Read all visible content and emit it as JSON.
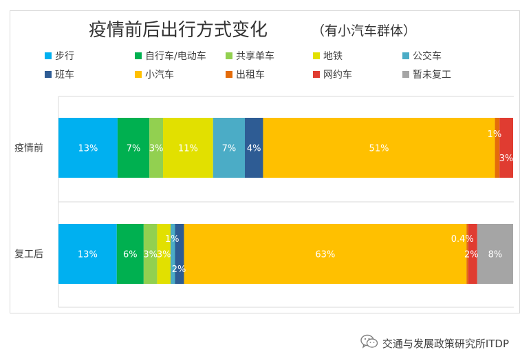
{
  "chart_data": {
    "type": "bar",
    "orientation": "horizontal",
    "stacked": "percent",
    "title": "疫情前后出行方式变化",
    "subtitle": "（有小汽车群体）",
    "legend_position": "top",
    "grid": false,
    "xlim": [
      0,
      100
    ],
    "categories": [
      "疫情前",
      "复工后"
    ],
    "series": [
      {
        "name": "步行",
        "color": "#00b0f0",
        "values": [
          13,
          13
        ],
        "labels": [
          "13%",
          "13%"
        ],
        "label_color": "#ffffff"
      },
      {
        "name": "自行车/电动车",
        "color": "#00b050",
        "values": [
          7,
          6
        ],
        "labels": [
          "7%",
          "6%"
        ],
        "label_color": "#ffffff"
      },
      {
        "name": "共享单车",
        "color": "#92d050",
        "values": [
          3,
          3
        ],
        "labels": [
          "3%",
          "3%"
        ],
        "label_color": "#ffffff"
      },
      {
        "name": "地铁",
        "color": "#e2e000",
        "values": [
          11,
          3
        ],
        "labels": [
          "11%",
          "3%"
        ],
        "label_color": "#ffffff"
      },
      {
        "name": "公交车",
        "color": "#4bacc6",
        "values": [
          7,
          1
        ],
        "labels": [
          "7%",
          "1%"
        ],
        "label_color": "#ffffff"
      },
      {
        "name": "班车",
        "color": "#2e5c94",
        "values": [
          4,
          2
        ],
        "labels": [
          "4%",
          "2%"
        ],
        "label_color": "#ffffff"
      },
      {
        "name": "小汽车",
        "color": "#ffc000",
        "values": [
          51,
          63
        ],
        "labels": [
          "51%",
          "63%"
        ],
        "label_color": "#ffffff"
      },
      {
        "name": "出租车",
        "color": "#e46c0a",
        "values": [
          1,
          0.4
        ],
        "labels": [
          "1%",
          "0.4%"
        ],
        "label_color": "#ffffff"
      },
      {
        "name": "网约车",
        "color": "#e03c31",
        "values": [
          3,
          2
        ],
        "labels": [
          "3%",
          "2%"
        ],
        "label_color": "#ffffff"
      },
      {
        "name": "暂未复工",
        "color": "#a5a5a5",
        "values": [
          0,
          8
        ],
        "labels": [
          "",
          "8%"
        ],
        "label_color": "#ffffff"
      }
    ]
  },
  "watermark": {
    "text": "交通与发展政策研究所ITDP",
    "icon": "wechat-icon"
  }
}
